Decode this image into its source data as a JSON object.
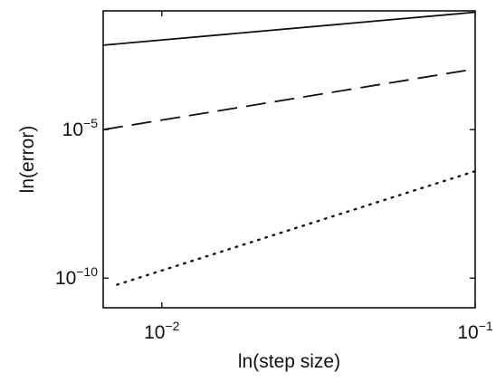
{
  "chart_data": {
    "type": "line",
    "xlabel": "ln(step size)",
    "ylabel": "ln(error)",
    "xscale": "log",
    "yscale": "log",
    "xlim": [
      0.0065,
      0.1
    ],
    "ylim": [
      1e-11,
      0.1
    ],
    "grid": false,
    "legend": "none",
    "x_ticks": [
      {
        "base": "10",
        "exponent": "−2",
        "value": 0.01
      },
      {
        "base": "10",
        "exponent": "−1",
        "value": 0.1
      }
    ],
    "y_ticks": [
      {
        "base": "10",
        "exponent": "−5",
        "value": 1e-05
      },
      {
        "base": "10",
        "exponent": "−10",
        "value": 1e-10
      }
    ],
    "series": [
      {
        "style": "solid",
        "x": [
          0.0065,
          0.1
        ],
        "y": [
          0.007,
          0.09
        ]
      },
      {
        "style": "dashed",
        "x": [
          0.0065,
          0.1
        ],
        "y": [
          1e-05,
          0.0011
        ]
      },
      {
        "style": "dotted",
        "x": [
          0.0072,
          0.1
        ],
        "y": [
          6e-11,
          4e-07
        ]
      }
    ],
    "colors": {
      "line": "#111111",
      "axis": "#111111"
    }
  }
}
